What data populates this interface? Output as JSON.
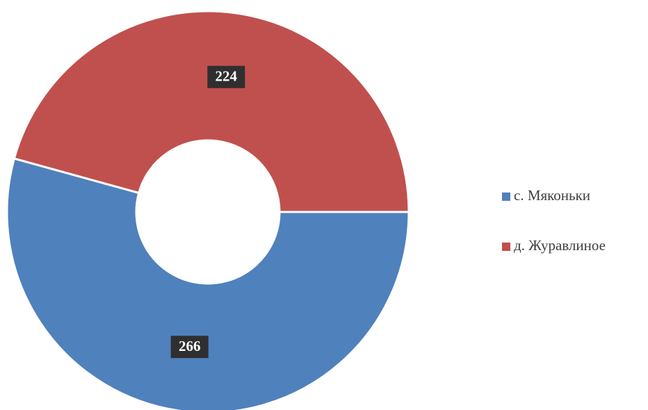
{
  "chart_data": {
    "type": "pie",
    "categories": [
      "с. Мяконьки",
      "д. Журавлиное"
    ],
    "values": [
      266,
      224
    ],
    "colors": [
      "#4f81bd",
      "#c0504d"
    ]
  }
}
